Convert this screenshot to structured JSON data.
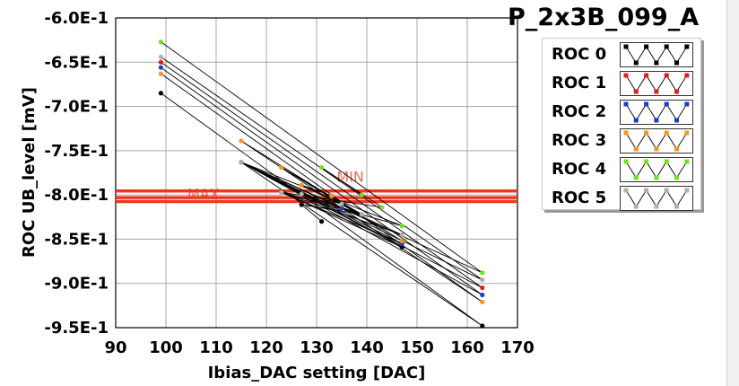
{
  "chart_data": {
    "type": "line",
    "title": "P_2x3B_099_A",
    "xlabel": "Ibias_DAC setting [DAC]",
    "ylabel": "ROC UB_level [mV]",
    "xlim": [
      90,
      170
    ],
    "ylim": [
      -0.95,
      -0.6
    ],
    "xticks": [
      90,
      100,
      110,
      120,
      130,
      140,
      150,
      160,
      170
    ],
    "yticks": [
      -0.6,
      -0.65,
      -0.7,
      -0.75,
      -0.8,
      -0.85,
      -0.9,
      -0.95
    ],
    "ytick_labels": [
      "-6.0E-1",
      "-6.5E-1",
      "-7.0E-1",
      "-7.5E-1",
      "-8.0E-1",
      "-8.5E-1",
      "-9.0E-1",
      "-9.5E-1"
    ],
    "grid": true,
    "legend_position": "right",
    "connect_order": "alternate",
    "hlines": [
      {
        "label": "MAX",
        "y": -0.8075,
        "color": "#e8391c"
      },
      {
        "label": "",
        "y": -0.803,
        "color": "#e8391c"
      },
      {
        "label": "MIN",
        "y": -0.7955,
        "color": "#e8391c"
      }
    ],
    "series": [
      {
        "name": "ROC 0",
        "color": "#000000",
        "points": [
          [
            99,
            -0.685
          ],
          [
            163,
            -0.948
          ],
          [
            115,
            -0.763
          ],
          [
            147,
            -0.859
          ],
          [
            123,
            -0.797
          ],
          [
            139,
            -0.822
          ],
          [
            127,
            -0.811
          ],
          [
            131,
            -0.83
          ]
        ]
      },
      {
        "name": "ROC 1",
        "color": "#e51c1c",
        "points": [
          [
            99,
            -0.65
          ],
          [
            163,
            -0.905
          ],
          [
            115,
            -0.763
          ],
          [
            147,
            -0.855
          ],
          [
            123,
            -0.797
          ],
          [
            139,
            -0.822
          ],
          [
            127,
            -0.789
          ],
          [
            133,
            -0.801
          ]
        ]
      },
      {
        "name": "ROC 2",
        "color": "#1c3ccc",
        "points": [
          [
            99,
            -0.656
          ],
          [
            163,
            -0.913
          ],
          [
            115,
            -0.763
          ],
          [
            147,
            -0.855
          ],
          [
            123,
            -0.797
          ],
          [
            139,
            -0.822
          ],
          [
            127,
            -0.799
          ],
          [
            135,
            -0.815
          ]
        ]
      },
      {
        "name": "ROC 3",
        "color": "#f39a1c",
        "points": [
          [
            99,
            -0.663
          ],
          [
            163,
            -0.921
          ],
          [
            115,
            -0.739
          ],
          [
            147,
            -0.852
          ],
          [
            123,
            -0.769
          ],
          [
            139,
            -0.822
          ],
          [
            127,
            -0.789
          ],
          [
            133,
            -0.801
          ]
        ]
      },
      {
        "name": "ROC 4",
        "color": "#6fe21c",
        "points": [
          [
            99,
            -0.627
          ],
          [
            163,
            -0.888
          ],
          [
            115,
            -0.763
          ],
          [
            147,
            -0.835
          ],
          [
            123,
            -0.797
          ],
          [
            143,
            -0.814
          ],
          [
            131,
            -0.769
          ],
          [
            139,
            -0.8
          ]
        ]
      },
      {
        "name": "ROC 5",
        "color": "#b0b0b0",
        "points": [
          [
            99,
            -0.644
          ],
          [
            163,
            -0.896
          ],
          [
            115,
            -0.763
          ],
          [
            147,
            -0.845
          ],
          [
            123,
            -0.797
          ],
          [
            139,
            -0.822
          ],
          [
            127,
            -0.799
          ],
          [
            135,
            -0.81
          ]
        ]
      }
    ]
  }
}
